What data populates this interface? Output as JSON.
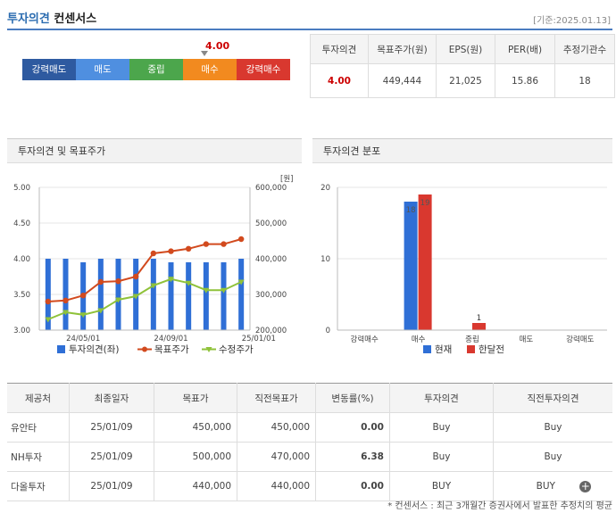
{
  "header": {
    "title_blue": "투자의견",
    "title_rest": "컨센서스",
    "date_ref": "[기준:2025.01.13]"
  },
  "rating": {
    "current_value": "4.00",
    "current_fraction": 0.75,
    "segments": [
      {
        "label": "강력매도",
        "color": "#2e5aa0"
      },
      {
        "label": "매도",
        "color": "#4f8fe0"
      },
      {
        "label": "중립",
        "color": "#4ca64c"
      },
      {
        "label": "매수",
        "color": "#f28a1f"
      },
      {
        "label": "강력매수",
        "color": "#d9382f"
      }
    ]
  },
  "summary": {
    "headers": [
      "투자의견",
      "목표주가(원)",
      "EPS(원)",
      "PER(배)",
      "추정기관수"
    ],
    "values": [
      "4.00",
      "449,444",
      "21,025",
      "15.86",
      "18"
    ]
  },
  "panels": {
    "left_title": "투자의견 및 목표주가",
    "right_title": "투자의견 분포"
  },
  "chart_data": [
    {
      "type": "bar+line",
      "title": "투자의견 및 목표주가",
      "y_left_label": "",
      "y_right_label": "[원]",
      "y_left_ticks": [
        "5.00",
        "4.50",
        "4.00",
        "3.50",
        "3.00"
      ],
      "y_right_ticks": [
        "600,000",
        "500,000",
        "400,000",
        "300,000",
        "200,000"
      ],
      "ylim_left": [
        3.0,
        5.0
      ],
      "ylim_right": [
        200000,
        600000
      ],
      "x_ticks": [
        "24/05/01",
        "24/09/01",
        "25/01/01"
      ],
      "x_tick_positions": [
        2.5,
        7.5,
        12.5
      ],
      "opinion": [
        4.0,
        4.0,
        3.95,
        4.0,
        4.0,
        4.0,
        4.0,
        3.95,
        3.95,
        3.95,
        3.95,
        4.0
      ],
      "target_price": [
        280000,
        283000,
        297000,
        335000,
        337000,
        350000,
        415000,
        421000,
        428000,
        441000,
        441000,
        455000
      ],
      "adjusted_price": [
        230000,
        250000,
        243000,
        255000,
        285000,
        295000,
        325000,
        343000,
        332000,
        312000,
        312000,
        335000
      ],
      "legend": [
        "투자의견(좌)",
        "목표주가",
        "수정주가"
      ],
      "colors": {
        "opinion": "#2f6fd6",
        "target": "#d24a1e",
        "adjusted": "#8fc23a"
      }
    },
    {
      "type": "bar",
      "title": "투자의견 분포",
      "categories": [
        "강력매수",
        "매수",
        "중립",
        "매도",
        "강력매도"
      ],
      "ylim": [
        0,
        20
      ],
      "y_ticks": [
        "20",
        "10",
        "0"
      ],
      "series": [
        {
          "name": "현재",
          "values": [
            0,
            18,
            0,
            0,
            0
          ],
          "color": "#2f6fd6"
        },
        {
          "name": "한달전",
          "values": [
            0,
            19,
            1,
            0,
            0
          ],
          "color": "#d9382f"
        }
      ],
      "data_labels": [
        "18",
        "19",
        "1"
      ]
    }
  ],
  "brokers": {
    "headers": [
      "제공처",
      "최종일자",
      "목표가",
      "직전목표가",
      "변동률(%)",
      "투자의견",
      "직전투자의견"
    ],
    "rows": [
      [
        "유안타",
        "25/01/09",
        "450,000",
        "450,000",
        "0.00",
        "Buy",
        "Buy"
      ],
      [
        "NH투자",
        "25/01/09",
        "500,000",
        "470,000",
        "6.38",
        "Buy",
        "Buy"
      ],
      [
        "다올투자",
        "25/01/09",
        "440,000",
        "440,000",
        "0.00",
        "BUY",
        "BUY"
      ]
    ]
  },
  "footnote": "* 컨센서스 : 최근 3개월간 증권사에서 발표한 추정치의 평균"
}
